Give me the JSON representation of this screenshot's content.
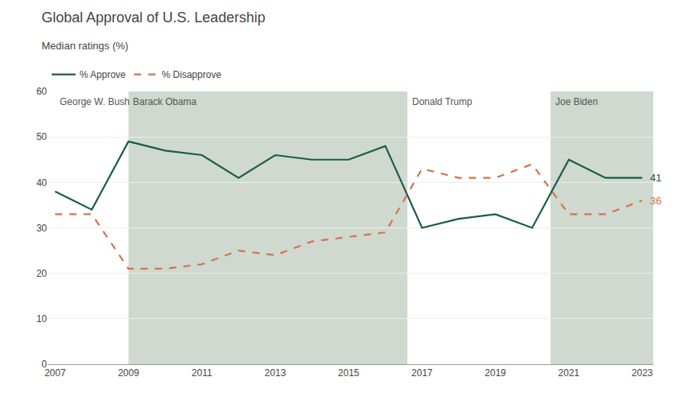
{
  "chart_data": {
    "type": "line",
    "title": "Global Approval of U.S. Leadership",
    "subtitle": "Median ratings (%)",
    "x": [
      2007,
      2008,
      2009,
      2010,
      2011,
      2012,
      2013,
      2014,
      2015,
      2016,
      2017,
      2018,
      2019,
      2020,
      2021,
      2022,
      2023
    ],
    "series": [
      {
        "name": "% Approve",
        "color": "#1a5c4a",
        "line_style": "solid",
        "values": [
          38,
          34,
          49,
          47,
          46,
          41,
          46,
          45,
          45,
          48,
          30,
          32,
          33,
          30,
          45,
          41,
          41
        ]
      },
      {
        "name": "% Disapprove",
        "color": "#d4724a",
        "line_style": "dashed",
        "values": [
          33,
          33,
          21,
          21,
          22,
          25,
          24,
          27,
          28,
          29,
          43,
          41,
          41,
          44,
          33,
          33,
          36
        ]
      }
    ],
    "xlim": [
      2006.8,
      2023.3
    ],
    "xticks": [
      2007,
      2009,
      2011,
      2013,
      2015,
      2017,
      2019,
      2021,
      2023
    ],
    "ylim": [
      0,
      60
    ],
    "yticks": [
      0,
      10,
      20,
      30,
      40,
      50,
      60
    ],
    "grid": true,
    "legend": "top",
    "periods": [
      {
        "name": "George W. Bush",
        "start": 2007,
        "end": 2009
      },
      {
        "name": "Barack Obama",
        "start": 2009,
        "end": 2016.6,
        "color": "#cfd9cf"
      },
      {
        "name": "Donald Trump",
        "start": 2016.6,
        "end": 2020.5
      },
      {
        "name": "Joe Biden",
        "start": 2020.5,
        "end": 2023.5,
        "color": "#cfd9cf"
      }
    ],
    "annotations": [
      {
        "text": "41",
        "x": 2023,
        "y": 41,
        "color": "#1a5c4a"
      },
      {
        "text": "36",
        "x": 2023,
        "y": 36,
        "color": "#d4724a"
      }
    ]
  }
}
